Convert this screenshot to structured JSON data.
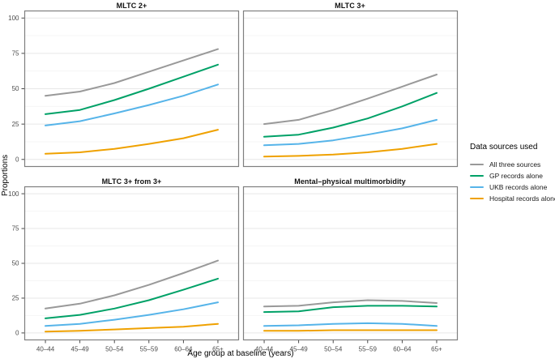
{
  "figure": {
    "y_axis_title": "Proportions",
    "x_axis_title": "Age group at baseline (years)"
  },
  "axes": {
    "x_ticks": [
      "40–44",
      "45–49",
      "50–54",
      "55–59",
      "60–64",
      "65+"
    ],
    "y_ticks": [
      0,
      25,
      50,
      75,
      100
    ],
    "y_range": [
      0,
      100
    ]
  },
  "legend": {
    "title": "Data sources used",
    "items": [
      {
        "label": "All three sources",
        "color": "#999999"
      },
      {
        "label": "GP records alone",
        "color": "#00A167"
      },
      {
        "label": "UKB records alone",
        "color": "#56B4E9"
      },
      {
        "label": "Hospital records alone",
        "color": "#EFA100"
      }
    ]
  },
  "chart_data": [
    {
      "type": "line",
      "title": "MLTC 2+",
      "x": [
        "40–44",
        "45–49",
        "50–54",
        "55–59",
        "60–64",
        "65+"
      ],
      "xlabel": "Age group at baseline (years)",
      "ylabel": "Proportions",
      "ylim": [
        0,
        100
      ],
      "series": [
        {
          "name": "All three sources",
          "values": [
            45,
            48,
            54,
            62,
            70,
            78
          ]
        },
        {
          "name": "GP records alone",
          "values": [
            32,
            35,
            42,
            50,
            58.5,
            67
          ]
        },
        {
          "name": "UKB records alone",
          "values": [
            24,
            27,
            32.5,
            38.5,
            45,
            53
          ]
        },
        {
          "name": "Hospital records alone",
          "values": [
            4,
            5,
            7.5,
            11,
            15,
            21
          ]
        }
      ]
    },
    {
      "type": "line",
      "title": "MLTC 3+",
      "x": [
        "40–44",
        "45–49",
        "50–54",
        "55–59",
        "60–64",
        "65+"
      ],
      "xlabel": "Age group at baseline (years)",
      "ylabel": "Proportions",
      "ylim": [
        0,
        100
      ],
      "series": [
        {
          "name": "All three sources",
          "values": [
            25,
            28,
            35,
            43,
            51.5,
            60
          ]
        },
        {
          "name": "GP records alone",
          "values": [
            16,
            17.5,
            22.5,
            29,
            37.5,
            47
          ]
        },
        {
          "name": "UKB records alone",
          "values": [
            10,
            11,
            13.5,
            17.5,
            22,
            28
          ]
        },
        {
          "name": "Hospital records alone",
          "values": [
            2,
            2.5,
            3.5,
            5,
            7.5,
            11
          ]
        }
      ]
    },
    {
      "type": "line",
      "title": "MLTC 3+ from 3+",
      "x": [
        "40–44",
        "45–49",
        "50–54",
        "55–59",
        "60–64",
        "65+"
      ],
      "xlabel": "Age group at baseline (years)",
      "ylabel": "Proportions",
      "ylim": [
        0,
        100
      ],
      "series": [
        {
          "name": "All three sources",
          "values": [
            17.5,
            21,
            27,
            34.5,
            43,
            52
          ]
        },
        {
          "name": "GP records alone",
          "values": [
            10.5,
            13,
            17.5,
            23.5,
            31,
            39
          ]
        },
        {
          "name": "UKB records alone",
          "values": [
            5,
            6.5,
            9.5,
            13,
            17,
            22
          ]
        },
        {
          "name": "Hospital records alone",
          "values": [
            1,
            1.5,
            2.5,
            3.5,
            4.5,
            6.5
          ]
        }
      ]
    },
    {
      "type": "line",
      "title": "Mental–physical multimorbidity",
      "x": [
        "40–44",
        "45–49",
        "50–54",
        "55–59",
        "60–64",
        "65+"
      ],
      "xlabel": "Age group at baseline (years)",
      "ylabel": "Proportions",
      "ylim": [
        0,
        100
      ],
      "series": [
        {
          "name": "All three sources",
          "values": [
            19,
            19.5,
            22,
            23.5,
            23,
            21.5
          ]
        },
        {
          "name": "GP records alone",
          "values": [
            15,
            15.5,
            18.5,
            19.5,
            19.5,
            19
          ]
        },
        {
          "name": "UKB records alone",
          "values": [
            5,
            5.5,
            6.5,
            7,
            6.5,
            5
          ]
        },
        {
          "name": "Hospital records alone",
          "values": [
            1.5,
            1.5,
            2,
            2,
            2,
            2
          ]
        }
      ]
    }
  ],
  "style": {
    "panel_border": "#7F7F7F",
    "grid_major": "#E7E7E7",
    "grid_minor": "#F5F5F5",
    "tick_mark": "#333333",
    "tick_label": "#4D4D4D"
  }
}
